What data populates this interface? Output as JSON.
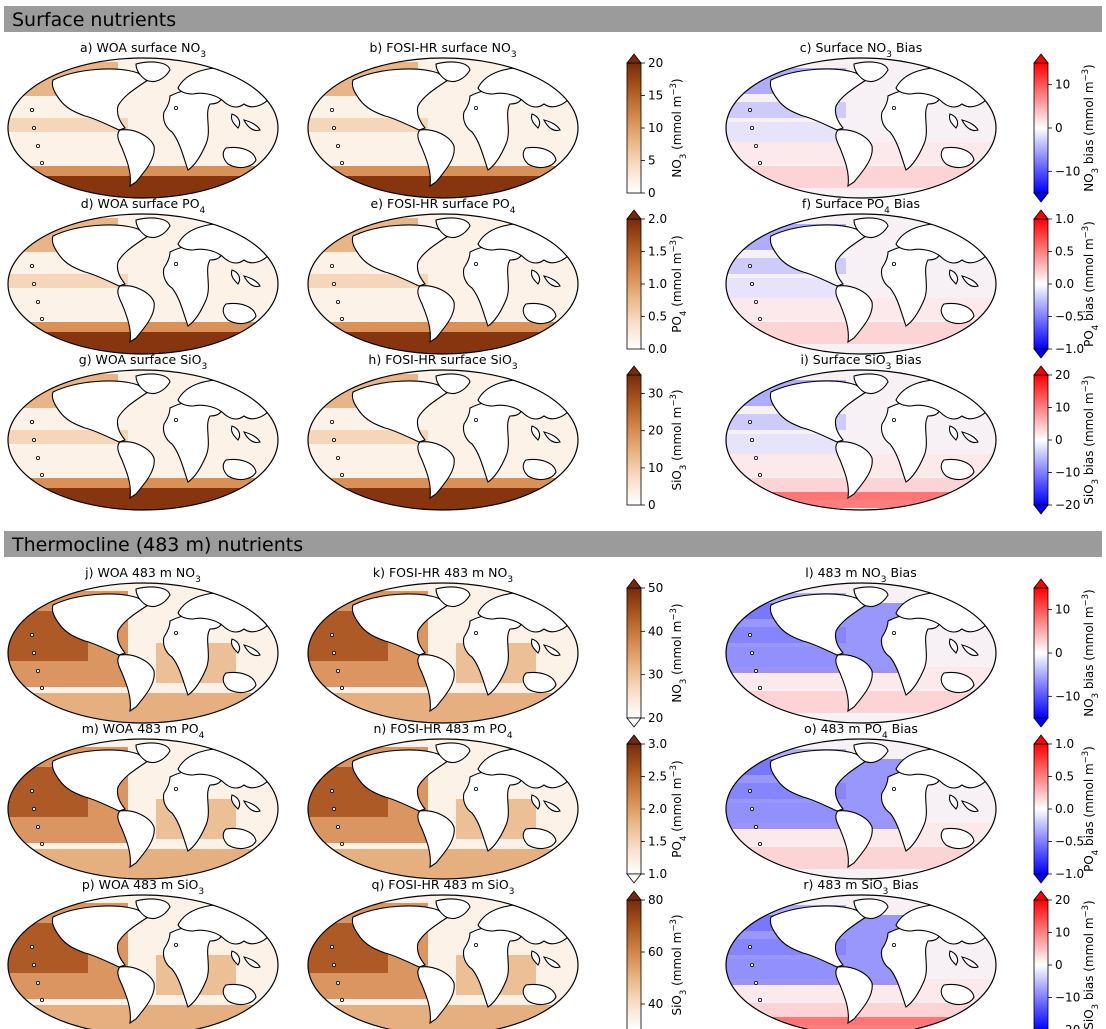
{
  "sections": [
    {
      "title": "Surface nutrients"
    },
    {
      "title": "Thermocline (483 m) nutrients"
    }
  ],
  "chart_data": [
    {
      "type": "heatmap",
      "grid": "4 rows x 3 columns per section, 2 sections",
      "panels": [
        {
          "title_prefix": "a) WOA surface NO",
          "title_sub": "3",
          "title_suffix": "",
          "cmap": "Oranges",
          "variable": "NO3",
          "range": [
            0,
            20
          ]
        },
        {
          "title_prefix": "b) FOSI-HR surface NO",
          "title_sub": "3",
          "title_suffix": "",
          "cmap": "Oranges",
          "variable": "NO3",
          "range": [
            0,
            20
          ]
        },
        {
          "title_prefix": "c) Surface NO",
          "title_sub": "3",
          "title_suffix": " Bias",
          "cmap": "bwr",
          "variable": "NO3 bias",
          "range": [
            -15,
            15
          ]
        },
        {
          "title_prefix": "d) WOA surface PO",
          "title_sub": "4",
          "title_suffix": "",
          "cmap": "Oranges",
          "variable": "PO4",
          "range": [
            0,
            2
          ]
        },
        {
          "title_prefix": "e) FOSI-HR surface PO",
          "title_sub": "4",
          "title_suffix": "",
          "cmap": "Oranges",
          "variable": "PO4",
          "range": [
            0,
            2
          ]
        },
        {
          "title_prefix": "f) Surface PO",
          "title_sub": "4",
          "title_suffix": " Bias",
          "cmap": "bwr",
          "variable": "PO4 bias",
          "range": [
            -1,
            1
          ]
        },
        {
          "title_prefix": "g) WOA surface SiO",
          "title_sub": "3",
          "title_suffix": "",
          "cmap": "Oranges",
          "variable": "SiO3",
          "range": [
            0,
            35
          ]
        },
        {
          "title_prefix": "h) FOSI-HR surface SiO",
          "title_sub": "3",
          "title_suffix": "",
          "cmap": "Oranges",
          "variable": "SiO3",
          "range": [
            0,
            35
          ]
        },
        {
          "title_prefix": "i) Surface SiO",
          "title_sub": "3",
          "title_suffix": " Bias",
          "cmap": "bwr",
          "variable": "SiO3 bias",
          "range": [
            -20,
            20
          ]
        },
        {
          "title_prefix": "j) WOA 483 m NO",
          "title_sub": "3",
          "title_suffix": "",
          "cmap": "Oranges",
          "variable": "NO3",
          "range": [
            20,
            50
          ]
        },
        {
          "title_prefix": "k) FOSI-HR 483 m NO",
          "title_sub": "3",
          "title_suffix": "",
          "cmap": "Oranges",
          "variable": "NO3",
          "range": [
            20,
            50
          ]
        },
        {
          "title_prefix": "l) 483 m NO",
          "title_sub": "3",
          "title_suffix": " Bias",
          "cmap": "bwr",
          "variable": "NO3 bias",
          "range": [
            -15,
            15
          ]
        },
        {
          "title_prefix": "m) WOA 483 m PO",
          "title_sub": "4",
          "title_suffix": "",
          "cmap": "Oranges",
          "variable": "PO4",
          "range": [
            1,
            3
          ]
        },
        {
          "title_prefix": "n) FOSI-HR 483 m PO",
          "title_sub": "4",
          "title_suffix": "",
          "cmap": "Oranges",
          "variable": "PO4",
          "range": [
            1,
            3
          ]
        },
        {
          "title_prefix": "o) 483 m PO",
          "title_sub": "4",
          "title_suffix": " Bias",
          "cmap": "bwr",
          "variable": "PO4 bias",
          "range": [
            -1,
            1
          ]
        },
        {
          "title_prefix": "p) WOA 483 m SiO",
          "title_sub": "3",
          "title_suffix": "",
          "cmap": "Oranges",
          "variable": "SiO3",
          "range": [
            30,
            80
          ]
        },
        {
          "title_prefix": "q) FOSI-HR 483 m SiO",
          "title_sub": "3",
          "title_suffix": "",
          "cmap": "Oranges",
          "variable": "SiO3",
          "range": [
            30,
            80
          ]
        },
        {
          "title_prefix": "r) 483 m SiO",
          "title_sub": "3",
          "title_suffix": " Bias",
          "cmap": "bwr",
          "variable": "SiO3 bias",
          "range": [
            -20,
            20
          ]
        }
      ],
      "colorbars": [
        {
          "label_main": "NO",
          "label_sub": "3",
          "label_rest": " (mmol m",
          "label_sup": "−3",
          "label_end": ")",
          "ticks": [
            "0",
            "5",
            "10",
            "15",
            "20"
          ],
          "tick_values": [
            0,
            5,
            10,
            15,
            20
          ],
          "range": [
            0,
            20
          ],
          "extend": "max",
          "cmap": "Oranges"
        },
        {
          "label_main": "NO",
          "label_sub": "3",
          "label_rest": " bias (mmol m",
          "label_sup": "−3",
          "label_end": ")",
          "ticks": [
            "−10",
            "0",
            "10"
          ],
          "tick_values": [
            -10,
            0,
            10
          ],
          "range": [
            -15,
            15
          ],
          "extend": "both",
          "cmap": "bwr"
        },
        {
          "label_main": "PO",
          "label_sub": "4",
          "label_rest": " (mmol m",
          "label_sup": "−3",
          "label_end": ")",
          "ticks": [
            "0.0",
            "0.5",
            "1.0",
            "1.5",
            "2.0"
          ],
          "tick_values": [
            0,
            0.5,
            1,
            1.5,
            2
          ],
          "range": [
            0,
            2
          ],
          "extend": "max",
          "cmap": "Oranges"
        },
        {
          "label_main": "PO",
          "label_sub": "4",
          "label_rest": " bias (mmol m",
          "label_sup": "−3",
          "label_end": ")",
          "ticks": [
            "−1.0",
            "−0.5",
            "0.0",
            "0.5",
            "1.0"
          ],
          "tick_values": [
            -1,
            -0.5,
            0,
            0.5,
            1
          ],
          "range": [
            -1,
            1
          ],
          "extend": "both",
          "cmap": "bwr"
        },
        {
          "label_main": "SiO",
          "label_sub": "3",
          "label_rest": " (mmol m",
          "label_sup": "−3",
          "label_end": ")",
          "ticks": [
            "0",
            "10",
            "20",
            "30"
          ],
          "tick_values": [
            0,
            10,
            20,
            30
          ],
          "range": [
            0,
            35
          ],
          "extend": "max",
          "cmap": "Oranges"
        },
        {
          "label_main": "SiO",
          "label_sub": "3",
          "label_rest": " bias (mmol m",
          "label_sup": "−3",
          "label_end": ")",
          "ticks": [
            "−20",
            "−10",
            "0",
            "10",
            "20"
          ],
          "tick_values": [
            -20,
            -10,
            0,
            10,
            20
          ],
          "range": [
            -20,
            20
          ],
          "extend": "both",
          "cmap": "bwr"
        },
        {
          "label_main": "NO",
          "label_sub": "3",
          "label_rest": " (mmol m",
          "label_sup": "−3",
          "label_end": ")",
          "ticks": [
            "20",
            "30",
            "40",
            "50"
          ],
          "tick_values": [
            20,
            30,
            40,
            50
          ],
          "range": [
            20,
            50
          ],
          "extend": "both",
          "cmap": "Oranges"
        },
        {
          "label_main": "NO",
          "label_sub": "3",
          "label_rest": " bias (mmol m",
          "label_sup": "−3",
          "label_end": ")",
          "ticks": [
            "−10",
            "0",
            "10"
          ],
          "tick_values": [
            -10,
            0,
            10
          ],
          "range": [
            -15,
            15
          ],
          "extend": "both",
          "cmap": "bwr"
        },
        {
          "label_main": "PO",
          "label_sub": "4",
          "label_rest": " (mmol m",
          "label_sup": "−3",
          "label_end": ")",
          "ticks": [
            "1.0",
            "1.5",
            "2.0",
            "2.5",
            "3.0"
          ],
          "tick_values": [
            1,
            1.5,
            2,
            2.5,
            3
          ],
          "range": [
            1,
            3
          ],
          "extend": "both",
          "cmap": "Oranges"
        },
        {
          "label_main": "PO",
          "label_sub": "4",
          "label_rest": " bias (mmol m",
          "label_sup": "−3",
          "label_end": ")",
          "ticks": [
            "−1.0",
            "−0.5",
            "0.0",
            "0.5",
            "1.0"
          ],
          "tick_values": [
            -1,
            -0.5,
            0,
            0.5,
            1
          ],
          "range": [
            -1,
            1
          ],
          "extend": "both",
          "cmap": "bwr"
        },
        {
          "label_main": "SiO",
          "label_sub": "3",
          "label_rest": " (mmol m",
          "label_sup": "−3",
          "label_end": ")",
          "ticks": [
            "40",
            "60",
            "80"
          ],
          "tick_values": [
            40,
            60,
            80
          ],
          "range": [
            30,
            80
          ],
          "extend": "both",
          "cmap": "Oranges"
        },
        {
          "label_main": "SiO",
          "label_sub": "3",
          "label_rest": " bias (mmol m",
          "label_sup": "−3",
          "label_end": ")",
          "ticks": [
            "−20",
            "−10",
            "0",
            "10",
            "20"
          ],
          "tick_values": [
            -20,
            -10,
            0,
            10,
            20
          ],
          "range": [
            -20,
            20
          ],
          "extend": "both",
          "cmap": "bwr"
        }
      ]
    }
  ]
}
